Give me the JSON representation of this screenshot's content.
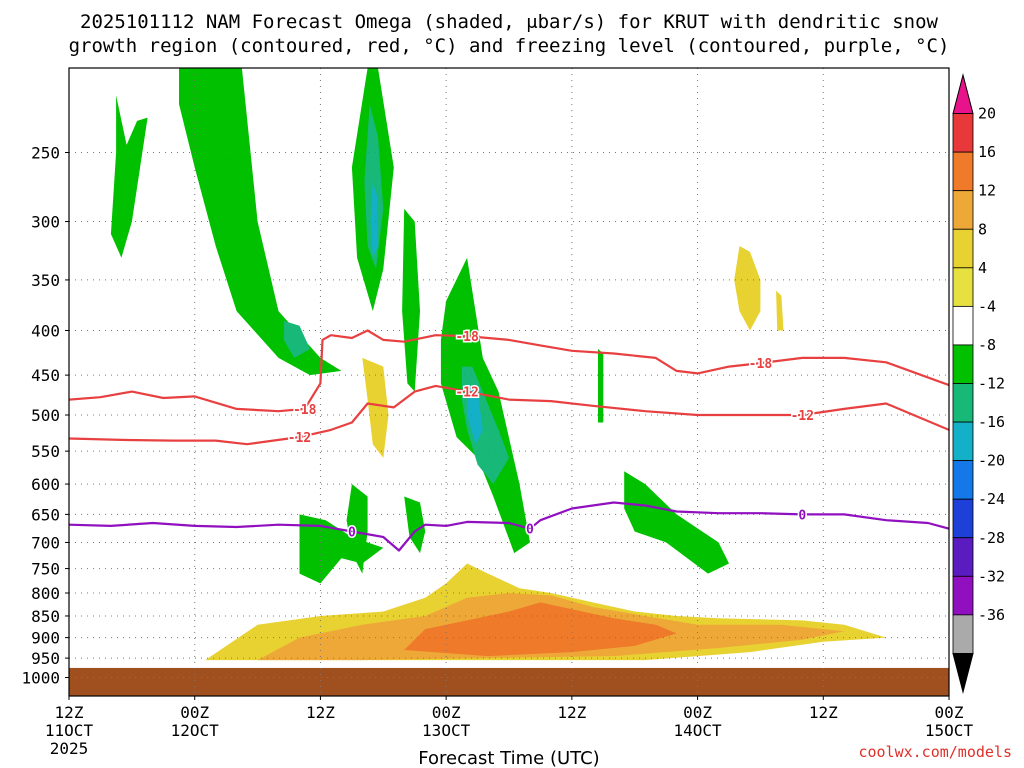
{
  "chart_data": {
    "type": "heatmap",
    "title_line1": "2025101112 NAM Forecast Omega (shaded, μbar/s) for KRUT with dendritic snow",
    "title_line2": "growth region (contoured, red, °C) and freezing level (contoured, purple, °C)",
    "xlabel": "Forecast Time (UTC)",
    "credit": "coolwx.com/models",
    "y_axis": {
      "scale": "log-pressure",
      "range": [
        1050,
        200
      ],
      "ticks": [
        250,
        300,
        350,
        400,
        450,
        500,
        550,
        600,
        650,
        700,
        750,
        800,
        850,
        900,
        950,
        1000
      ]
    },
    "x_axis": {
      "range_hours": [
        0,
        84
      ],
      "ticks": [
        {
          "h": 0,
          "line1": "12Z",
          "line2": "11OCT",
          "line3": "2025"
        },
        {
          "h": 12,
          "line1": "00Z",
          "line2": "12OCT",
          "line3": ""
        },
        {
          "h": 24,
          "line1": "12Z",
          "line2": "",
          "line3": ""
        },
        {
          "h": 36,
          "line1": "00Z",
          "line2": "13OCT",
          "line3": ""
        },
        {
          "h": 48,
          "line1": "12Z",
          "line2": "",
          "line3": ""
        },
        {
          "h": 60,
          "line1": "00Z",
          "line2": "14OCT",
          "line3": ""
        },
        {
          "h": 72,
          "line1": "12Z",
          "line2": "",
          "line3": ""
        },
        {
          "h": 84,
          "line1": "00Z",
          "line2": "15OCT",
          "line3": ""
        }
      ]
    },
    "colorbar": {
      "labels": [
        "20",
        "16",
        "12",
        "8",
        "4",
        "-4",
        "-8",
        "-12",
        "-16",
        "-20",
        "-24",
        "-28",
        "-32",
        "-36"
      ],
      "colors": [
        "#e8128a",
        "#e8383a",
        "#ee7a2a",
        "#eea838",
        "#e8d232",
        "#e6e040",
        "#ffffff",
        "#00c000",
        "#18b878",
        "#14b0c8",
        "#1478e8",
        "#1c40d8",
        "#5a1cc0",
        "#9010c0",
        "#aaaaaa",
        "#000000"
      ]
    },
    "omega_regions": [
      {
        "level": -4,
        "color": "#00c000",
        "points": [
          [
            4.5,
            215
          ],
          [
            5.5,
            245
          ],
          [
            6.5,
            230
          ],
          [
            7.5,
            228
          ],
          [
            6,
            300
          ],
          [
            5,
            330
          ],
          [
            4,
            310
          ],
          [
            4.5,
            250
          ]
        ]
      },
      {
        "level": -4,
        "color": "#00c000",
        "points": [
          [
            10.5,
            200
          ],
          [
            16.5,
            200
          ],
          [
            18,
            300
          ],
          [
            20,
            380
          ],
          [
            24,
            430
          ],
          [
            26,
            445
          ],
          [
            23,
            450
          ],
          [
            20,
            430
          ],
          [
            16,
            380
          ],
          [
            14,
            320
          ],
          [
            12,
            260
          ],
          [
            10.5,
            220
          ]
        ]
      },
      {
        "level": -8,
        "color": "#18b878",
        "points": [
          [
            20.5,
            390
          ],
          [
            22,
            395
          ],
          [
            23,
            420
          ],
          [
            21.5,
            430
          ],
          [
            20.5,
            410
          ]
        ]
      },
      {
        "level": -4,
        "color": "#00c000",
        "points": [
          [
            28.5,
            200
          ],
          [
            29.5,
            200
          ],
          [
            31,
            260
          ],
          [
            30,
            340
          ],
          [
            29,
            380
          ],
          [
            27.5,
            330
          ],
          [
            27,
            260
          ]
        ]
      },
      {
        "level": -8,
        "color": "#18b878",
        "points": [
          [
            28.7,
            220
          ],
          [
            29.5,
            240
          ],
          [
            30,
            290
          ],
          [
            29.3,
            340
          ],
          [
            28.5,
            320
          ],
          [
            28.2,
            270
          ]
        ]
      },
      {
        "level": -12,
        "color": "#14b0c8",
        "points": [
          [
            29,
            270
          ],
          [
            29.4,
            280
          ],
          [
            29.5,
            320
          ],
          [
            29,
            330
          ],
          [
            28.8,
            300
          ]
        ]
      },
      {
        "level": -4,
        "color": "#00c000",
        "points": [
          [
            32,
            290
          ],
          [
            33,
            300
          ],
          [
            33.5,
            380
          ],
          [
            33,
            470
          ],
          [
            32.3,
            460
          ],
          [
            31.8,
            380
          ]
        ]
      },
      {
        "level": -4,
        "color": "#00c000",
        "points": [
          [
            36,
            370
          ],
          [
            38,
            330
          ],
          [
            39.5,
            430
          ],
          [
            41,
            470
          ],
          [
            43,
            600
          ],
          [
            44,
            700
          ],
          [
            42.5,
            720
          ],
          [
            40.5,
            620
          ],
          [
            39,
            560
          ],
          [
            37,
            530
          ],
          [
            35.5,
            460
          ],
          [
            35.5,
            410
          ]
        ]
      },
      {
        "level": -8,
        "color": "#18b878",
        "points": [
          [
            37.5,
            440
          ],
          [
            38.5,
            440
          ],
          [
            39.5,
            470
          ],
          [
            41,
            520
          ],
          [
            42,
            560
          ],
          [
            40.5,
            600
          ],
          [
            39,
            570
          ],
          [
            38,
            520
          ],
          [
            37.5,
            480
          ]
        ]
      },
      {
        "level": -12,
        "color": "#14b0c8",
        "points": [
          [
            38,
            460
          ],
          [
            39,
            470
          ],
          [
            39.5,
            520
          ],
          [
            38.8,
            540
          ],
          [
            38,
            500
          ]
        ]
      },
      {
        "level": -4,
        "color": "#00c000",
        "points": [
          [
            22,
            650
          ],
          [
            24.5,
            660
          ],
          [
            27,
            690
          ],
          [
            30,
            710
          ],
          [
            28,
            740
          ],
          [
            26,
            730
          ],
          [
            24,
            780
          ],
          [
            22,
            760
          ]
        ]
      },
      {
        "level": -4,
        "color": "#00c000",
        "points": [
          [
            27,
            600
          ],
          [
            28.5,
            620
          ],
          [
            28.5,
            680
          ],
          [
            28,
            760
          ],
          [
            27,
            720
          ],
          [
            26.5,
            660
          ]
        ]
      },
      {
        "level": -4,
        "color": "#00c000",
        "points": [
          [
            32,
            620
          ],
          [
            33.5,
            630
          ],
          [
            34,
            680
          ],
          [
            33.5,
            720
          ],
          [
            32.5,
            690
          ]
        ]
      },
      {
        "level": -4,
        "color": "#00c000",
        "points": [
          [
            50.5,
            420
          ],
          [
            51,
            425
          ],
          [
            51,
            510
          ],
          [
            50.5,
            510
          ]
        ]
      },
      {
        "level": -4,
        "color": "#00c000",
        "points": [
          [
            53,
            580
          ],
          [
            55,
            600
          ],
          [
            58,
            650
          ],
          [
            62,
            700
          ],
          [
            63,
            740
          ],
          [
            61,
            760
          ],
          [
            57,
            700
          ],
          [
            54,
            680
          ],
          [
            53,
            640
          ]
        ]
      },
      {
        "level": 4,
        "color": "#e8d232",
        "points": [
          [
            28,
            430
          ],
          [
            30,
            440
          ],
          [
            30.5,
            500
          ],
          [
            30,
            560
          ],
          [
            29,
            540
          ],
          [
            28.5,
            480
          ]
        ]
      },
      {
        "level": 4,
        "color": "#e8d232",
        "points": [
          [
            64,
            320
          ],
          [
            65,
            325
          ],
          [
            66,
            350
          ],
          [
            66,
            380
          ],
          [
            65,
            400
          ],
          [
            64,
            380
          ],
          [
            63.5,
            350
          ]
        ]
      },
      {
        "level": 4,
        "color": "#e8d232",
        "points": [
          [
            67.5,
            360
          ],
          [
            68,
            365
          ],
          [
            68.2,
            400
          ],
          [
            67.6,
            400
          ]
        ]
      },
      {
        "level": 4,
        "color": "#e8d232",
        "points": [
          [
            13,
            955
          ],
          [
            18,
            870
          ],
          [
            24,
            850
          ],
          [
            30,
            840
          ],
          [
            34,
            810
          ],
          [
            36,
            780
          ],
          [
            38,
            740
          ],
          [
            40,
            760
          ],
          [
            43,
            790
          ],
          [
            46,
            800
          ],
          [
            50,
            820
          ],
          [
            54,
            840
          ],
          [
            58,
            850
          ],
          [
            62,
            855
          ],
          [
            70,
            860
          ],
          [
            74,
            870
          ],
          [
            78,
            900
          ],
          [
            72,
            910
          ],
          [
            65,
            935
          ],
          [
            55,
            955
          ],
          [
            45,
            955
          ],
          [
            30,
            955
          ]
        ]
      },
      {
        "level": 8,
        "color": "#eea838",
        "points": [
          [
            18,
            955
          ],
          [
            22,
            900
          ],
          [
            28,
            870
          ],
          [
            34,
            850
          ],
          [
            38,
            810
          ],
          [
            42,
            800
          ],
          [
            46,
            805
          ],
          [
            50,
            830
          ],
          [
            55,
            850
          ],
          [
            60,
            870
          ],
          [
            68,
            870
          ],
          [
            74,
            885
          ],
          [
            70,
            905
          ],
          [
            62,
            925
          ],
          [
            52,
            945
          ],
          [
            40,
            950
          ],
          [
            28,
            955
          ]
        ]
      },
      {
        "level": 12,
        "color": "#ee7a2a",
        "points": [
          [
            32,
            930
          ],
          [
            34,
            880
          ],
          [
            38,
            860
          ],
          [
            42,
            840
          ],
          [
            45,
            820
          ],
          [
            48,
            835
          ],
          [
            52,
            855
          ],
          [
            56,
            870
          ],
          [
            58,
            890
          ],
          [
            54,
            920
          ],
          [
            48,
            935
          ],
          [
            40,
            945
          ]
        ]
      }
    ],
    "ground": {
      "color": "#a0501e",
      "from_pressure": 975
    },
    "isotherms": [
      {
        "level": -18,
        "color": "#e84040",
        "label": "-18",
        "points": [
          [
            0,
            480
          ],
          [
            3,
            477
          ],
          [
            6,
            470
          ],
          [
            9,
            478
          ],
          [
            12,
            476
          ],
          [
            16,
            492
          ],
          [
            20,
            495
          ],
          [
            22.5,
            492
          ],
          [
            24,
            460
          ],
          [
            24.2,
            410
          ],
          [
            25,
            405
          ],
          [
            27,
            408
          ],
          [
            28.5,
            400
          ],
          [
            30,
            410
          ],
          [
            32,
            412
          ],
          [
            35,
            405
          ],
          [
            38,
            406
          ],
          [
            42,
            410
          ],
          [
            45,
            416
          ],
          [
            48,
            422
          ],
          [
            52,
            425
          ],
          [
            56,
            430
          ],
          [
            58,
            445
          ],
          [
            60,
            448
          ],
          [
            63,
            440
          ],
          [
            66,
            436
          ],
          [
            70,
            430
          ],
          [
            74,
            430
          ],
          [
            78,
            435
          ],
          [
            84,
            462
          ]
        ]
      },
      {
        "level": -12,
        "color": "#e84040",
        "label": "-12",
        "points": [
          [
            0,
            532
          ],
          [
            5,
            534
          ],
          [
            10,
            535
          ],
          [
            14,
            535
          ],
          [
            17,
            540
          ],
          [
            20,
            534
          ],
          [
            22,
            530
          ],
          [
            25,
            520
          ],
          [
            27,
            510
          ],
          [
            28.5,
            485
          ],
          [
            31,
            490
          ],
          [
            33,
            470
          ],
          [
            35,
            463
          ],
          [
            38,
            470
          ],
          [
            42,
            480
          ],
          [
            46,
            482
          ],
          [
            50,
            488
          ],
          [
            55,
            495
          ],
          [
            60,
            500
          ],
          [
            66,
            500
          ],
          [
            70,
            500
          ],
          [
            74,
            492
          ],
          [
            78,
            485
          ],
          [
            84,
            520
          ]
        ]
      },
      {
        "level": 0,
        "color": "#9010c0",
        "label": "0",
        "points": [
          [
            0,
            668
          ],
          [
            4,
            670
          ],
          [
            8,
            665
          ],
          [
            12,
            670
          ],
          [
            16,
            672
          ],
          [
            20,
            668
          ],
          [
            24,
            670
          ],
          [
            27,
            680
          ],
          [
            30,
            690
          ],
          [
            31.5,
            715
          ],
          [
            33,
            680
          ],
          [
            34,
            668
          ],
          [
            36,
            670
          ],
          [
            38,
            663
          ],
          [
            42,
            665
          ],
          [
            44,
            675
          ],
          [
            45,
            660
          ],
          [
            48,
            640
          ],
          [
            52,
            630
          ],
          [
            55,
            635
          ],
          [
            58,
            645
          ],
          [
            62,
            648
          ],
          [
            66,
            648
          ],
          [
            70,
            650
          ],
          [
            74,
            650
          ],
          [
            78,
            660
          ],
          [
            82,
            665
          ],
          [
            84,
            675
          ]
        ]
      }
    ]
  }
}
